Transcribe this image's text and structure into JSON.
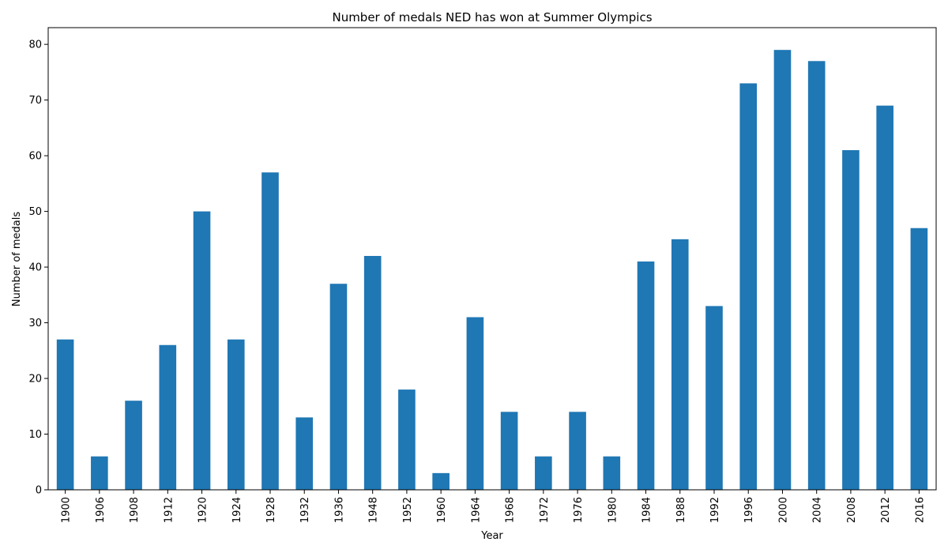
{
  "chart_data": {
    "type": "bar",
    "title": "Number of medals NED has won at Summer Olympics",
    "xlabel": "Year",
    "ylabel": "Number of medals",
    "categories": [
      "1900",
      "1906",
      "1908",
      "1912",
      "1920",
      "1924",
      "1928",
      "1932",
      "1936",
      "1948",
      "1952",
      "1960",
      "1964",
      "1968",
      "1972",
      "1976",
      "1980",
      "1984",
      "1988",
      "1992",
      "1996",
      "2000",
      "2004",
      "2008",
      "2012",
      "2016"
    ],
    "values": [
      27,
      6,
      16,
      26,
      50,
      27,
      57,
      13,
      37,
      42,
      18,
      3,
      31,
      14,
      6,
      14,
      6,
      41,
      45,
      33,
      73,
      79,
      77,
      61,
      69,
      47
    ],
    "ylim": [
      0,
      83
    ],
    "yticks": [
      0,
      10,
      20,
      30,
      40,
      50,
      60,
      70,
      80
    ],
    "bar_color": "#1f77b4",
    "grid": false,
    "legend": false
  }
}
